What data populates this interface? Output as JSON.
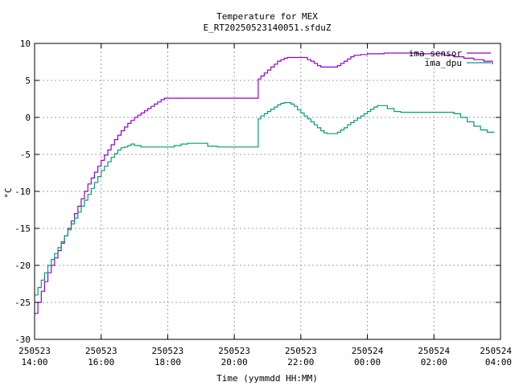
{
  "chart_data": {
    "type": "line",
    "title": "Temperature for MEX",
    "subtitle": "E_RT20250523140051.sfduZ",
    "xlabel": "Time (yymmdd HH:MM)",
    "ylabel": "°C",
    "xlim": [
      0,
      14
    ],
    "ylim": [
      -30,
      10
    ],
    "x_ticks": [
      {
        "value": 0,
        "date": "250523",
        "time": "14:00"
      },
      {
        "value": 2,
        "date": "250523",
        "time": "16:00"
      },
      {
        "value": 4,
        "date": "250523",
        "time": "18:00"
      },
      {
        "value": 6,
        "date": "250523",
        "time": "20:00"
      },
      {
        "value": 8,
        "date": "250523",
        "time": "22:00"
      },
      {
        "value": 10,
        "date": "250524",
        "time": "00:00"
      },
      {
        "value": 12,
        "date": "250524",
        "time": "02:00"
      },
      {
        "value": 14,
        "date": "250524",
        "time": "04:00"
      }
    ],
    "y_ticks": [
      "10",
      "5",
      "0",
      "-5",
      "-10",
      "-15",
      "-20",
      "-25",
      "-30"
    ],
    "grid": true,
    "legend_position": "top-right",
    "series": [
      {
        "name": "ima_sensor",
        "color": "#9400d3",
        "points": [
          [
            0.0,
            -26.5
          ],
          [
            0.1,
            -25.0
          ],
          [
            0.2,
            -23.5
          ],
          [
            0.3,
            -22.2
          ],
          [
            0.4,
            -21.0
          ],
          [
            0.5,
            -20.0
          ],
          [
            0.6,
            -19.0
          ],
          [
            0.7,
            -18.0
          ],
          [
            0.8,
            -17.0
          ],
          [
            0.9,
            -16.0
          ],
          [
            1.0,
            -15.0
          ],
          [
            1.1,
            -14.0
          ],
          [
            1.2,
            -13.0
          ],
          [
            1.3,
            -12.0
          ],
          [
            1.4,
            -11.0
          ],
          [
            1.5,
            -10.0
          ],
          [
            1.6,
            -9.0
          ],
          [
            1.7,
            -8.2
          ],
          [
            1.8,
            -7.4
          ],
          [
            1.9,
            -6.6
          ],
          [
            2.0,
            -5.8
          ],
          [
            2.1,
            -5.1
          ],
          [
            2.2,
            -4.4
          ],
          [
            2.3,
            -3.7
          ],
          [
            2.4,
            -3.0
          ],
          [
            2.5,
            -2.4
          ],
          [
            2.6,
            -1.8
          ],
          [
            2.7,
            -1.3
          ],
          [
            2.8,
            -0.8
          ],
          [
            2.9,
            -0.4
          ],
          [
            3.0,
            0.0
          ],
          [
            3.1,
            0.3
          ],
          [
            3.2,
            0.6
          ],
          [
            3.3,
            0.9
          ],
          [
            3.4,
            1.2
          ],
          [
            3.5,
            1.5
          ],
          [
            3.6,
            1.8
          ],
          [
            3.7,
            2.1
          ],
          [
            3.8,
            2.4
          ],
          [
            3.9,
            2.6
          ],
          [
            4.0,
            2.6
          ],
          [
            4.5,
            2.6
          ],
          [
            5.0,
            2.6
          ],
          [
            5.5,
            2.6
          ],
          [
            6.0,
            2.6
          ],
          [
            6.5,
            2.6
          ],
          [
            6.7,
            2.6
          ],
          [
            6.72,
            5.2
          ],
          [
            6.8,
            5.6
          ],
          [
            6.9,
            6.0
          ],
          [
            7.0,
            6.4
          ],
          [
            7.1,
            6.8
          ],
          [
            7.2,
            7.2
          ],
          [
            7.3,
            7.6
          ],
          [
            7.4,
            7.8
          ],
          [
            7.5,
            8.0
          ],
          [
            7.6,
            8.1
          ],
          [
            7.8,
            8.1
          ],
          [
            8.0,
            8.1
          ],
          [
            8.2,
            7.8
          ],
          [
            8.3,
            7.6
          ],
          [
            8.4,
            7.3
          ],
          [
            8.5,
            7.0
          ],
          [
            8.6,
            6.8
          ],
          [
            8.8,
            6.8
          ],
          [
            9.0,
            6.8
          ],
          [
            9.1,
            7.0
          ],
          [
            9.2,
            7.3
          ],
          [
            9.3,
            7.6
          ],
          [
            9.4,
            7.9
          ],
          [
            9.5,
            8.2
          ],
          [
            9.6,
            8.4
          ],
          [
            9.8,
            8.5
          ],
          [
            10.0,
            8.6
          ],
          [
            10.2,
            8.6
          ],
          [
            10.5,
            8.7
          ],
          [
            11.0,
            8.7
          ],
          [
            11.5,
            8.6
          ],
          [
            12.0,
            8.6
          ],
          [
            12.3,
            8.4
          ],
          [
            12.6,
            8.2
          ],
          [
            12.9,
            8.0
          ],
          [
            13.2,
            7.8
          ],
          [
            13.5,
            7.6
          ],
          [
            13.75,
            7.2
          ]
        ]
      },
      {
        "name": "ima_dpu",
        "color": "#009e73",
        "points": [
          [
            0.0,
            -24.0
          ],
          [
            0.1,
            -23.0
          ],
          [
            0.2,
            -22.0
          ],
          [
            0.3,
            -21.0
          ],
          [
            0.4,
            -20.0
          ],
          [
            0.5,
            -19.2
          ],
          [
            0.6,
            -18.4
          ],
          [
            0.7,
            -17.6
          ],
          [
            0.8,
            -16.8
          ],
          [
            0.9,
            -16.0
          ],
          [
            1.0,
            -15.2
          ],
          [
            1.1,
            -14.4
          ],
          [
            1.2,
            -13.6
          ],
          [
            1.3,
            -12.8
          ],
          [
            1.4,
            -12.0
          ],
          [
            1.5,
            -11.2
          ],
          [
            1.6,
            -10.4
          ],
          [
            1.7,
            -9.6
          ],
          [
            1.8,
            -8.8
          ],
          [
            1.9,
            -8.0
          ],
          [
            2.0,
            -7.2
          ],
          [
            2.1,
            -6.6
          ],
          [
            2.2,
            -6.0
          ],
          [
            2.3,
            -5.4
          ],
          [
            2.4,
            -4.9
          ],
          [
            2.5,
            -4.4
          ],
          [
            2.6,
            -4.1
          ],
          [
            2.7,
            -4.0
          ],
          [
            2.8,
            -3.8
          ],
          [
            2.9,
            -3.6
          ],
          [
            3.0,
            -3.8
          ],
          [
            3.2,
            -4.0
          ],
          [
            3.4,
            -4.0
          ],
          [
            3.6,
            -4.0
          ],
          [
            3.8,
            -4.0
          ],
          [
            4.0,
            -4.0
          ],
          [
            4.2,
            -3.8
          ],
          [
            4.4,
            -3.6
          ],
          [
            4.6,
            -3.5
          ],
          [
            5.0,
            -3.5
          ],
          [
            5.2,
            -3.9
          ],
          [
            5.5,
            -4.0
          ],
          [
            6.0,
            -4.0
          ],
          [
            6.5,
            -4.0
          ],
          [
            6.7,
            -4.0
          ],
          [
            6.72,
            -0.2
          ],
          [
            6.8,
            0.2
          ],
          [
            6.9,
            0.5
          ],
          [
            7.0,
            0.8
          ],
          [
            7.1,
            1.1
          ],
          [
            7.2,
            1.4
          ],
          [
            7.3,
            1.7
          ],
          [
            7.4,
            1.9
          ],
          [
            7.5,
            2.0
          ],
          [
            7.6,
            2.0
          ],
          [
            7.7,
            1.8
          ],
          [
            7.8,
            1.5
          ],
          [
            7.9,
            1.0
          ],
          [
            8.0,
            0.6
          ],
          [
            8.1,
            0.2
          ],
          [
            8.2,
            -0.2
          ],
          [
            8.3,
            -0.6
          ],
          [
            8.4,
            -1.0
          ],
          [
            8.5,
            -1.4
          ],
          [
            8.6,
            -1.8
          ],
          [
            8.7,
            -2.1
          ],
          [
            8.8,
            -2.2
          ],
          [
            9.0,
            -2.2
          ],
          [
            9.1,
            -2.0
          ],
          [
            9.2,
            -1.7
          ],
          [
            9.3,
            -1.4
          ],
          [
            9.4,
            -1.0
          ],
          [
            9.5,
            -0.7
          ],
          [
            9.6,
            -0.4
          ],
          [
            9.7,
            -0.1
          ],
          [
            9.8,
            0.2
          ],
          [
            9.9,
            0.5
          ],
          [
            10.0,
            0.8
          ],
          [
            10.1,
            1.1
          ],
          [
            10.2,
            1.4
          ],
          [
            10.3,
            1.6
          ],
          [
            10.5,
            1.6
          ],
          [
            10.6,
            1.2
          ],
          [
            10.8,
            0.8
          ],
          [
            11.0,
            0.7
          ],
          [
            11.5,
            0.7
          ],
          [
            12.0,
            0.7
          ],
          [
            12.4,
            0.7
          ],
          [
            12.6,
            0.5
          ],
          [
            12.8,
            0.0
          ],
          [
            13.0,
            -0.6
          ],
          [
            13.2,
            -1.2
          ],
          [
            13.4,
            -1.7
          ],
          [
            13.6,
            -2.0
          ],
          [
            13.8,
            -2.1
          ]
        ]
      }
    ]
  }
}
